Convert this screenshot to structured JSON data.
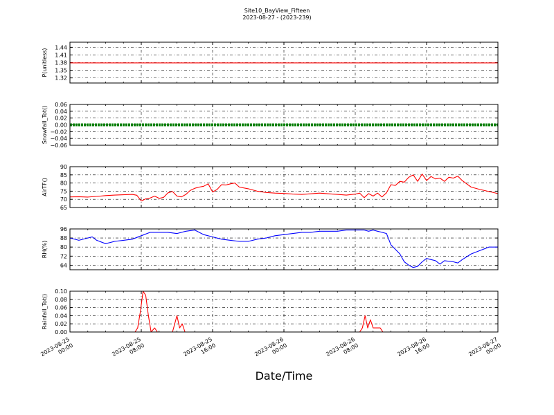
{
  "chart_data": {
    "type": "line",
    "title": "Site10_BayView_Fifteen",
    "subtitle": "2023-08-27 - (2023-239)",
    "xlabel": "Date/Time",
    "x_ticks": [
      "2023-08-25\n00:00",
      "2023-08-25\n08:00",
      "2023-08-25\n16:00",
      "2023-08-26\n00:00",
      "2023-08-26\n08:00",
      "2023-08-26\n16:00",
      "2023-08-27\n00:00"
    ],
    "x_range_hours": [
      0,
      48
    ],
    "grid": true,
    "panels": [
      {
        "ylabel": "P(unitless)",
        "ylim": [
          1.3,
          1.46
        ],
        "yticks": [
          "1.32",
          "1.35",
          "1.38",
          "1.41",
          "1.44"
        ],
        "ytick_values": [
          1.32,
          1.35,
          1.38,
          1.41,
          1.44
        ],
        "series": [
          {
            "color": "#ff0000",
            "style": "line",
            "points": [
              [
                0,
                1.379
              ],
              [
                48,
                1.379
              ]
            ]
          }
        ]
      },
      {
        "ylabel": "Snowfall_Tot()",
        "ylim": [
          -0.06,
          0.06
        ],
        "yticks": [
          "0.06",
          "0.04",
          "0.02",
          "0.00",
          "−0.02",
          "−0.04",
          "−0.06"
        ],
        "ytick_values": [
          0.06,
          0.04,
          0.02,
          0.0,
          -0.02,
          -0.04,
          -0.06
        ],
        "series": [
          {
            "color": "#008000",
            "style": "thick-dots",
            "points": [
              [
                0,
                0
              ],
              [
                48,
                0
              ]
            ]
          }
        ]
      },
      {
        "ylabel": "AirTF()",
        "ylim": [
          65,
          90
        ],
        "yticks": [
          "90",
          "85",
          "80",
          "75",
          "70",
          "65"
        ],
        "ytick_values": [
          90,
          85,
          80,
          75,
          70,
          65
        ],
        "series": [
          {
            "color": "#ff0000",
            "style": "line",
            "points": [
              [
                0,
                71.5
              ],
              [
                1,
                71.6
              ],
              [
                2,
                71.4
              ],
              [
                3,
                71.8
              ],
              [
                4,
                72.3
              ],
              [
                5,
                72.6
              ],
              [
                6,
                72.8
              ],
              [
                7,
                73.0
              ],
              [
                7.5,
                72.5
              ],
              [
                8,
                69.0
              ],
              [
                8.5,
                70.3
              ],
              [
                9,
                70.8
              ],
              [
                9.5,
                72.0
              ],
              [
                10,
                70.6
              ],
              [
                10.5,
                71.2
              ],
              [
                11,
                74.0
              ],
              [
                11.5,
                74.8
              ],
              [
                12,
                72.0
              ],
              [
                12.5,
                71.5
              ],
              [
                13,
                73.0
              ],
              [
                13.5,
                75.5
              ],
              [
                14,
                76.8
              ],
              [
                14.5,
                77.5
              ],
              [
                15,
                78.0
              ],
              [
                15.5,
                79.5
              ],
              [
                16,
                74.5
              ],
              [
                16.5,
                76.0
              ],
              [
                17,
                79.0
              ],
              [
                17.5,
                78.8
              ],
              [
                18,
                79.5
              ],
              [
                18.5,
                80.0
              ],
              [
                19,
                77.5
              ],
              [
                20,
                76.5
              ],
              [
                21,
                75.0
              ],
              [
                22,
                74.2
              ],
              [
                23,
                73.8
              ],
              [
                24,
                73.6
              ],
              [
                25,
                73.2
              ],
              [
                26,
                73.0
              ],
              [
                27,
                73.4
              ],
              [
                28,
                73.8
              ],
              [
                29,
                73.4
              ],
              [
                30,
                73.0
              ],
              [
                31,
                72.6
              ],
              [
                32,
                73.2
              ],
              [
                32.5,
                73.8
              ],
              [
                33,
                71.0
              ],
              [
                33.5,
                73.5
              ],
              [
                34,
                72.0
              ],
              [
                34.5,
                73.8
              ],
              [
                35,
                71.5
              ],
              [
                35.5,
                74.0
              ],
              [
                36,
                79.0
              ],
              [
                36.5,
                78.5
              ],
              [
                37,
                81.0
              ],
              [
                37.5,
                80.5
              ],
              [
                38,
                83.5
              ],
              [
                38.5,
                85.0
              ],
              [
                39,
                81.0
              ],
              [
                39.5,
                85.5
              ],
              [
                40,
                81.5
              ],
              [
                40.5,
                84.0
              ],
              [
                41,
                82.5
              ],
              [
                41.5,
                83.0
              ],
              [
                42,
                81.0
              ],
              [
                42.5,
                83.5
              ],
              [
                43,
                83.0
              ],
              [
                43.5,
                84.2
              ],
              [
                44,
                81.5
              ],
              [
                44.5,
                79.5
              ],
              [
                45,
                77.5
              ],
              [
                46,
                76.0
              ],
              [
                47,
                74.8
              ],
              [
                48,
                73.5
              ]
            ]
          }
        ]
      },
      {
        "ylabel": "RH(%)",
        "ylim": [
          60,
          96
        ],
        "yticks": [
          "96",
          "88",
          "80",
          "72",
          "64"
        ],
        "ytick_values": [
          96,
          88,
          80,
          72,
          64
        ],
        "series": [
          {
            "color": "#0000ff",
            "style": "line",
            "points": [
              [
                0,
                88
              ],
              [
                1,
                86
              ],
              [
                2,
                88
              ],
              [
                2.5,
                89
              ],
              [
                3,
                86
              ],
              [
                4,
                83
              ],
              [
                5,
                85
              ],
              [
                6,
                86
              ],
              [
                7,
                87
              ],
              [
                8,
                90
              ],
              [
                9,
                93
              ],
              [
                10,
                93
              ],
              [
                11,
                93
              ],
              [
                12,
                92
              ],
              [
                13,
                94
              ],
              [
                14,
                95
              ],
              [
                15,
                91
              ],
              [
                16,
                89
              ],
              [
                17,
                87
              ],
              [
                18,
                86
              ],
              [
                19,
                85
              ],
              [
                20,
                85
              ],
              [
                21,
                87
              ],
              [
                22,
                88
              ],
              [
                23,
                90
              ],
              [
                24,
                91
              ],
              [
                25,
                92
              ],
              [
                26,
                93
              ],
              [
                27,
                93
              ],
              [
                28,
                94
              ],
              [
                29,
                94
              ],
              [
                30,
                94
              ],
              [
                31,
                95
              ],
              [
                32,
                95
              ],
              [
                33,
                95
              ],
              [
                33.5,
                94
              ],
              [
                34,
                95
              ],
              [
                34.5,
                94
              ],
              [
                35,
                93
              ],
              [
                35.5,
                92
              ],
              [
                36,
                82
              ],
              [
                37,
                74
              ],
              [
                37.5,
                67
              ],
              [
                38,
                64
              ],
              [
                38.5,
                62
              ],
              [
                39,
                63
              ],
              [
                39.5,
                67
              ],
              [
                40,
                70
              ],
              [
                40.5,
                69
              ],
              [
                41,
                68
              ],
              [
                41.5,
                65
              ],
              [
                42,
                68
              ],
              [
                43,
                67
              ],
              [
                43.5,
                66
              ],
              [
                44,
                69
              ],
              [
                45,
                74
              ],
              [
                46,
                77
              ],
              [
                47,
                80
              ],
              [
                48,
                80
              ]
            ]
          }
        ]
      },
      {
        "ylabel": "Rainfall_Tot()",
        "ylim": [
          0,
          0.1
        ],
        "yticks": [
          "0.10",
          "0.08",
          "0.06",
          "0.04",
          "0.02",
          "0.00"
        ],
        "ytick_values": [
          0.1,
          0.08,
          0.06,
          0.04,
          0.02,
          0.0
        ],
        "series": [
          {
            "color": "#ff0000",
            "style": "line",
            "points": [
              [
                0,
                0
              ],
              [
                7.3,
                0
              ],
              [
                7.6,
                0.01
              ],
              [
                7.9,
                0.05
              ],
              [
                8.2,
                0.1
              ],
              [
                8.5,
                0.09
              ],
              [
                8.8,
                0.04
              ],
              [
                9.1,
                0
              ],
              [
                9.5,
                0.01
              ],
              [
                9.8,
                0
              ],
              [
                11.5,
                0
              ],
              [
                12,
                0.04
              ],
              [
                12.3,
                0.01
              ],
              [
                12.6,
                0.02
              ],
              [
                12.9,
                0
              ],
              [
                32.5,
                0
              ],
              [
                32.8,
                0.01
              ],
              [
                33.1,
                0.04
              ],
              [
                33.4,
                0.01
              ],
              [
                33.7,
                0.03
              ],
              [
                34,
                0.01
              ],
              [
                34.8,
                0.01
              ],
              [
                35.1,
                0
              ],
              [
                48,
                0
              ]
            ]
          }
        ]
      }
    ]
  }
}
